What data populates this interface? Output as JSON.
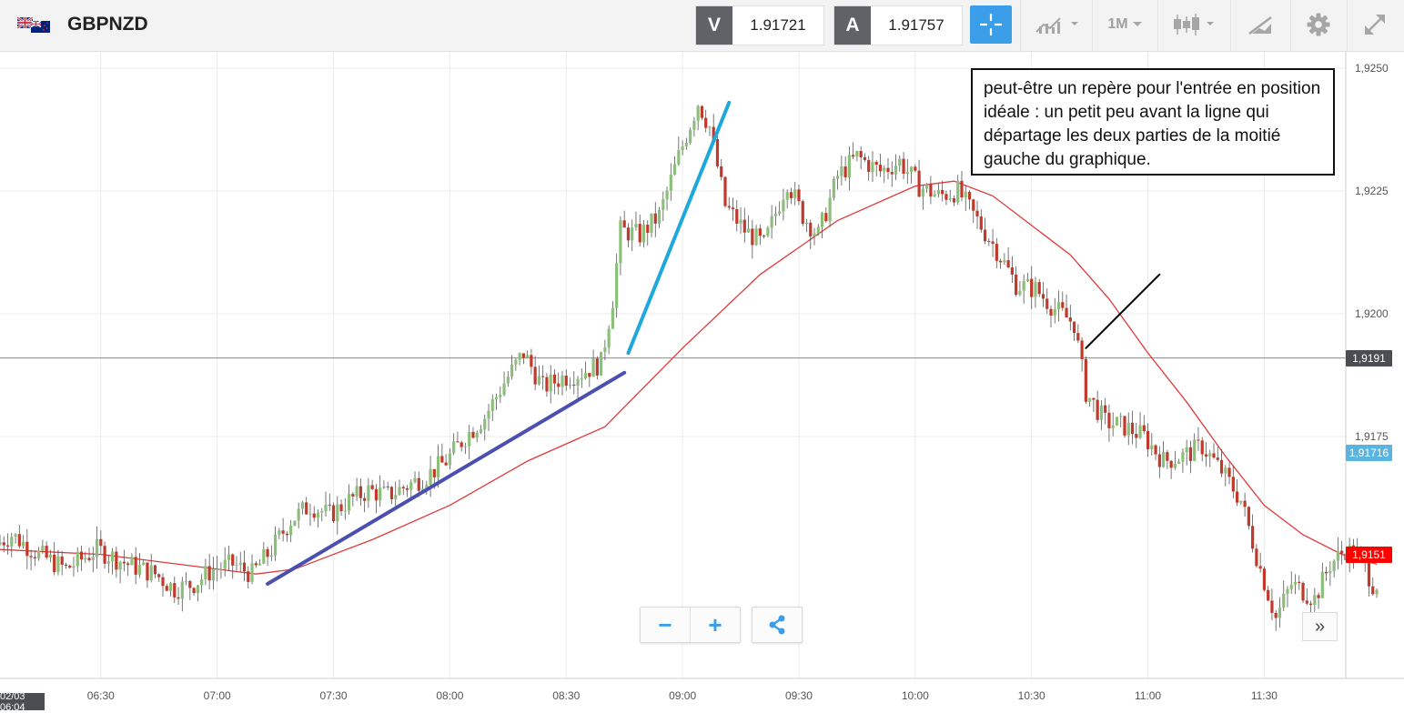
{
  "header": {
    "symbol": "GBPNZD",
    "flag_icon": "gbp-nzd-flag-icon",
    "sell": {
      "tag": "V",
      "value": "1.91721"
    },
    "buy": {
      "tag": "A",
      "value": "1.91757"
    },
    "timeframe": "1M",
    "icons": [
      "crosshair-icon",
      "indicator-icon",
      "candlestick-icon",
      "drawing-tool-icon",
      "gear-icon",
      "expand-icon"
    ]
  },
  "annotation": {
    "text": "peut-être un repère pour l'entrée en position idéale : un petit peu avant la ligne qui départage les deux parties de la moitié gauche du graphique."
  },
  "current_date_label": "02/03 06:04",
  "controls": {
    "zoom_out": "−",
    "zoom_in": "+",
    "share_icon": "share-icon",
    "forward": "»"
  },
  "colors": {
    "bull": "#8cc07a",
    "bear": "#c0392b",
    "ma": "#e03a3a",
    "trend1": "#4a4fb0",
    "trend2": "#1ea8dc",
    "crosshair": "#3a9ee8",
    "ask_tag": "#4a4d52",
    "last_tag": "#5ab4e0",
    "ma_tag": "#ff0000"
  },
  "chart_data": {
    "type": "candlestick",
    "y_ticks": [
      "1,9250",
      "1,9225",
      "1,9200",
      "1,9175"
    ],
    "x_ticks": [
      "06:30",
      "07:00",
      "07:30",
      "08:00",
      "08:30",
      "09:00",
      "09:30",
      "10:00",
      "10:30",
      "11:00",
      "11:30"
    ],
    "ylim": [
      1.9133,
      1.9253
    ],
    "price_tags": [
      {
        "label": "1,9191",
        "value": 1.9191,
        "kind": "ask"
      },
      {
        "label": "1,91716",
        "value": 1.91716,
        "kind": "last"
      },
      {
        "label": "1,9151",
        "value": 1.9151,
        "kind": "ma"
      }
    ],
    "price_path": [
      [
        "06:04",
        1.9153
      ],
      [
        "06:08",
        1.9155
      ],
      [
        "06:15",
        1.9151
      ],
      [
        "06:22",
        1.9148
      ],
      [
        "06:30",
        1.9152
      ],
      [
        "06:38",
        1.9149
      ],
      [
        "06:45",
        1.9147
      ],
      [
        "06:50",
        1.9144
      ],
      [
        "06:55",
        1.9145
      ],
      [
        "07:00",
        1.9148
      ],
      [
        "07:05",
        1.9149
      ],
      [
        "07:10",
        1.9147
      ],
      [
        "07:15",
        1.9152
      ],
      [
        "07:20",
        1.9158
      ],
      [
        "07:25",
        1.9161
      ],
      [
        "07:30",
        1.9159
      ],
      [
        "07:35",
        1.9162
      ],
      [
        "07:40",
        1.9164
      ],
      [
        "07:45",
        1.9163
      ],
      [
        "07:50",
        1.9165
      ],
      [
        "07:55",
        1.9167
      ],
      [
        "08:00",
        1.917
      ],
      [
        "08:05",
        1.9175
      ],
      [
        "08:10",
        1.9179
      ],
      [
        "08:15",
        1.9186
      ],
      [
        "08:20",
        1.9192
      ],
      [
        "08:25",
        1.9185
      ],
      [
        "08:30",
        1.9187
      ],
      [
        "08:35",
        1.9188
      ],
      [
        "08:40",
        1.919
      ],
      [
        "08:43",
        1.9203
      ],
      [
        "08:45",
        1.9217
      ],
      [
        "08:50",
        1.9216
      ],
      [
        "08:55",
        1.922
      ],
      [
        "09:00",
        1.9232
      ],
      [
        "09:05",
        1.9243
      ],
      [
        "09:08",
        1.9238
      ],
      [
        "09:12",
        1.9222
      ],
      [
        "09:17",
        1.9217
      ],
      [
        "09:22",
        1.9214
      ],
      [
        "09:28",
        1.9227
      ],
      [
        "09:32",
        1.922
      ],
      [
        "09:36",
        1.9216
      ],
      [
        "09:41",
        1.9228
      ],
      [
        "09:46",
        1.9232
      ],
      [
        "09:52",
        1.9229
      ],
      [
        "09:57",
        1.9231
      ],
      [
        "10:02",
        1.9226
      ],
      [
        "10:07",
        1.9224
      ],
      [
        "10:12",
        1.9225
      ],
      [
        "10:17",
        1.9219
      ],
      [
        "10:22",
        1.9213
      ],
      [
        "10:27",
        1.9206
      ],
      [
        "10:32",
        1.9205
      ],
      [
        "10:37",
        1.9201
      ],
      [
        "10:42",
        1.9198
      ],
      [
        "10:45",
        1.9184
      ],
      [
        "10:50",
        1.9178
      ],
      [
        "10:55",
        1.9177
      ],
      [
        "11:00",
        1.9175
      ],
      [
        "11:05",
        1.917
      ],
      [
        "11:10",
        1.9171
      ],
      [
        "11:15",
        1.9173
      ],
      [
        "11:20",
        1.9168
      ],
      [
        "11:25",
        1.9162
      ],
      [
        "11:30",
        1.9148
      ],
      [
        "11:34",
        1.9138
      ],
      [
        "11:38",
        1.9145
      ],
      [
        "11:44",
        1.9142
      ],
      [
        "11:48",
        1.9149
      ],
      [
        "11:52",
        1.9152
      ],
      [
        "11:56",
        1.915
      ],
      [
        "11:59",
        1.9145
      ]
    ],
    "moving_average": [
      [
        "06:04",
        1.9152
      ],
      [
        "06:30",
        1.9151
      ],
      [
        "06:50",
        1.9149
      ],
      [
        "07:10",
        1.9147
      ],
      [
        "07:20",
        1.9148
      ],
      [
        "07:40",
        1.9154
      ],
      [
        "08:00",
        1.9161
      ],
      [
        "08:20",
        1.917
      ],
      [
        "08:40",
        1.9177
      ],
      [
        "09:00",
        1.9193
      ],
      [
        "09:20",
        1.9208
      ],
      [
        "09:40",
        1.9219
      ],
      [
        "10:00",
        1.9226
      ],
      [
        "10:10",
        1.9227
      ],
      [
        "10:20",
        1.9224
      ],
      [
        "10:40",
        1.9212
      ],
      [
        "10:50",
        1.9203
      ],
      [
        "11:00",
        1.9192
      ],
      [
        "11:10",
        1.9182
      ],
      [
        "11:20",
        1.9171
      ],
      [
        "11:30",
        1.9161
      ],
      [
        "11:40",
        1.9155
      ],
      [
        "11:50",
        1.9151
      ],
      [
        "11:59",
        1.9149
      ]
    ],
    "trend_lines": [
      {
        "from": [
          "07:13",
          1.9145
        ],
        "to": [
          "08:45",
          1.9188
        ],
        "color": "trend1"
      },
      {
        "from": [
          "08:46",
          1.9192
        ],
        "to": [
          "09:12",
          1.9243
        ],
        "color": "trend2"
      },
      {
        "from": [
          "10:44",
          1.9193
        ],
        "to": [
          "11:03",
          1.9208
        ],
        "color": "black"
      }
    ]
  }
}
